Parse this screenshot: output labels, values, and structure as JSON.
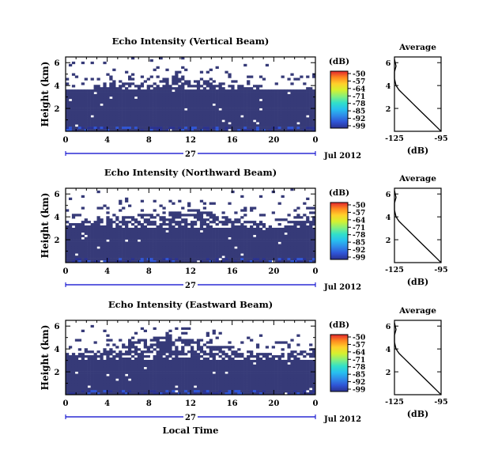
{
  "colors": {
    "background_level": "#363a78",
    "frame": "#000000",
    "time_axis": "#0000cc"
  },
  "colorscale": [
    "#2a3190",
    "#2f55d6",
    "#2f8be9",
    "#28c0ef",
    "#32e0c9",
    "#84f07e",
    "#d5f12f",
    "#ffd12b",
    "#ff8a1f",
    "#e2262e"
  ],
  "common": {
    "date_day": "27",
    "date_label": "Jul 2012",
    "xlabel": "Local Time",
    "ylabel": "Height (km)",
    "cbar_unit": "(dB)",
    "avg_title": "Average",
    "avg_xlabel": "(dB)"
  },
  "chart_data": [
    {
      "type": "heatmap",
      "title": "Echo Intensity (Vertical Beam)",
      "x_ticks": [
        "0",
        "4",
        "8",
        "12",
        "16",
        "20",
        "0"
      ],
      "y_ticks": [
        "6",
        "4",
        "2"
      ],
      "xlim": [
        0,
        24
      ],
      "ylim": [
        0,
        6.5
      ],
      "colorbar_ticks": [
        "-50",
        "-57",
        "-64",
        "-71",
        "-78",
        "-85",
        "-92",
        "-99"
      ],
      "colorbar_range": [
        -99,
        -50
      ],
      "echo_top_km": [
        3.7,
        3.6,
        3.7,
        3.9,
        4.1,
        4.5,
        4.3,
        4.1,
        4.2,
        4.6,
        5.0,
        4.7,
        4.4,
        4.6,
        4.5,
        4.2,
        4.1,
        4.0,
        3.8,
        3.7,
        3.6,
        3.7,
        3.6,
        3.8,
        3.7
      ],
      "solid_top_km": 3.6,
      "average": {
        "x_ticks": [
          "-125",
          "-95"
        ],
        "y_ticks": [
          "6",
          "4",
          "2"
        ],
        "xlim": [
          -125,
          -95
        ],
        "profile_db": [
          -95,
          -98,
          -101,
          -104,
          -107,
          -110,
          -113,
          -116,
          -119,
          -122,
          -124,
          -125,
          -125,
          -124,
          -125
        ],
        "profile_km": [
          0.0,
          0.4,
          0.8,
          1.2,
          1.6,
          2.0,
          2.4,
          2.8,
          3.2,
          3.6,
          4.0,
          4.6,
          5.2,
          5.7,
          6.3
        ]
      }
    },
    {
      "type": "heatmap",
      "title": "Echo Intensity (Northward Beam)",
      "x_ticks": [
        "0",
        "4",
        "8",
        "12",
        "16",
        "20",
        "0"
      ],
      "y_ticks": [
        "6",
        "4",
        "2"
      ],
      "xlim": [
        0,
        24
      ],
      "ylim": [
        0,
        6.5
      ],
      "colorbar_ticks": [
        "-50",
        "-57",
        "-64",
        "-71",
        "-78",
        "-85",
        "-92",
        "-99"
      ],
      "colorbar_range": [
        -99,
        -50
      ],
      "echo_top_km": [
        3.4,
        3.5,
        3.6,
        3.8,
        3.9,
        4.0,
        4.1,
        4.2,
        4.3,
        4.4,
        4.5,
        4.4,
        4.3,
        4.5,
        4.4,
        4.2,
        4.0,
        3.8,
        3.6,
        3.4,
        3.3,
        3.5,
        3.7,
        3.9,
        4.0
      ],
      "solid_top_km": 3.1,
      "average": {
        "x_ticks": [
          "-125",
          "-95"
        ],
        "y_ticks": [
          "6",
          "4",
          "2"
        ],
        "xlim": [
          -125,
          -95
        ],
        "profile_db": [
          -95,
          -98,
          -101,
          -104,
          -107,
          -110,
          -113,
          -116,
          -119,
          -122,
          -124,
          -125,
          -125,
          -124,
          -125
        ],
        "profile_km": [
          0.0,
          0.4,
          0.8,
          1.2,
          1.6,
          2.0,
          2.4,
          2.8,
          3.2,
          3.6,
          4.0,
          4.6,
          5.2,
          5.7,
          6.3
        ]
      }
    },
    {
      "type": "heatmap",
      "title": "Echo Intensity (Eastward Beam)",
      "x_ticks": [
        "0",
        "4",
        "8",
        "12",
        "16",
        "20",
        "0"
      ],
      "y_ticks": [
        "6",
        "4",
        "2"
      ],
      "xlim": [
        0,
        24
      ],
      "ylim": [
        0,
        6.5
      ],
      "colorbar_ticks": [
        "-50",
        "-57",
        "-64",
        "-71",
        "-78",
        "-85",
        "-92",
        "-99"
      ],
      "colorbar_range": [
        -99,
        -50
      ],
      "echo_top_km": [
        3.6,
        3.7,
        3.8,
        3.9,
        4.1,
        4.4,
        4.6,
        4.8,
        4.9,
        5.1,
        5.3,
        4.9,
        4.6,
        4.8,
        4.6,
        4.3,
        4.1,
        3.9,
        3.7,
        3.6,
        3.5,
        3.6,
        3.8,
        4.0,
        4.1
      ],
      "solid_top_km": 3.0,
      "average": {
        "x_ticks": [
          "-125",
          "-95"
        ],
        "y_ticks": [
          "6",
          "4",
          "2"
        ],
        "xlim": [
          -125,
          -95
        ],
        "profile_db": [
          -95,
          -98,
          -101,
          -104,
          -107,
          -110,
          -113,
          -116,
          -119,
          -122,
          -124,
          -125,
          -125,
          -124,
          -125
        ],
        "profile_km": [
          0.0,
          0.4,
          0.8,
          1.2,
          1.6,
          2.0,
          2.4,
          2.8,
          3.2,
          3.6,
          4.0,
          4.6,
          5.2,
          5.7,
          6.3
        ]
      }
    }
  ]
}
